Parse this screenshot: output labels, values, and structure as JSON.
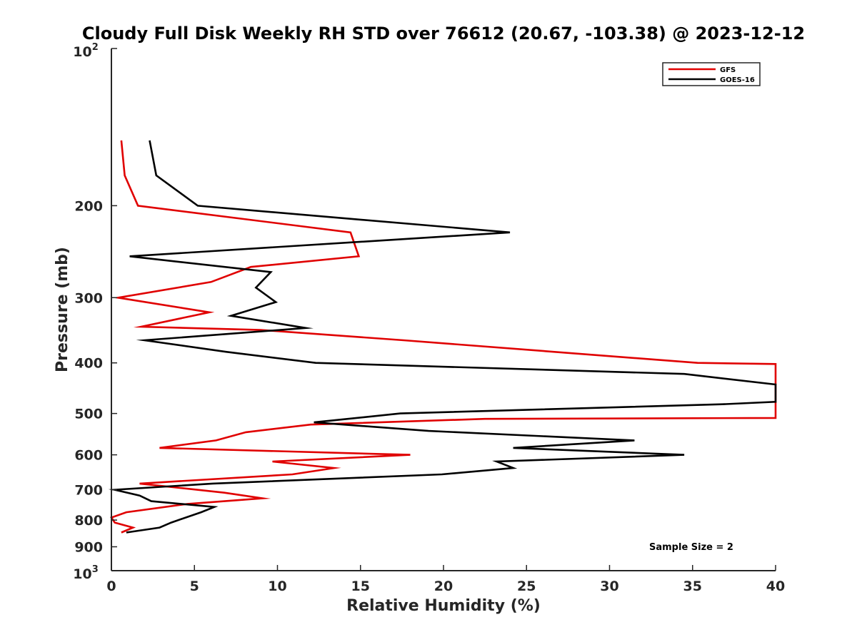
{
  "chart_data": {
    "type": "line",
    "title": "Cloudy Full Disk Weekly RH STD over 76612 (20.67, -103.38) @ 2023-12-12",
    "xlabel": "Relative Humidity (%)",
    "ylabel": "Pressure (mb)",
    "xlim": [
      0,
      40
    ],
    "ylim": [
      100,
      1000
    ],
    "yscale": "log",
    "y_reversed": true,
    "grid": false,
    "legend_position": "top-right",
    "x_ticks": [
      0,
      5,
      10,
      15,
      20,
      25,
      30,
      35,
      40
    ],
    "x_tick_labels": [
      "0",
      "5",
      "10",
      "15",
      "20",
      "25",
      "30",
      "35",
      "40"
    ],
    "y_ticks": [
      {
        "value": 100,
        "base": "10",
        "exp": "2"
      },
      {
        "value": 200,
        "label": "200"
      },
      {
        "value": 300,
        "label": "300"
      },
      {
        "value": 400,
        "label": "400"
      },
      {
        "value": 500,
        "label": "500"
      },
      {
        "value": 600,
        "label": "600"
      },
      {
        "value": 700,
        "label": "700"
      },
      {
        "value": 800,
        "label": "800"
      },
      {
        "value": 900,
        "label": "900"
      },
      {
        "value": 1000,
        "base": "10",
        "exp": "3"
      }
    ],
    "annotation": "Sample Size = 2",
    "series": [
      {
        "name": "GFS",
        "color": "#e00000",
        "points": [
          {
            "x": 0.6,
            "y": 150
          },
          {
            "x": 0.8,
            "y": 175
          },
          {
            "x": 1.6,
            "y": 200
          },
          {
            "x": 14.4,
            "y": 225
          },
          {
            "x": 14.9,
            "y": 250
          },
          {
            "x": 8.4,
            "y": 262
          },
          {
            "x": 6.0,
            "y": 280
          },
          {
            "x": 0.4,
            "y": 300
          },
          {
            "x": 5.9,
            "y": 320
          },
          {
            "x": 1.8,
            "y": 341
          },
          {
            "x": 9.0,
            "y": 346
          },
          {
            "x": 17.6,
            "y": 362
          },
          {
            "x": 35.3,
            "y": 400
          },
          {
            "x": 40.0,
            "y": 402
          },
          {
            "x": 40.0,
            "y": 510
          },
          {
            "x": 22.5,
            "y": 512
          },
          {
            "x": 12.0,
            "y": 525
          },
          {
            "x": 8.1,
            "y": 543
          },
          {
            "x": 6.3,
            "y": 563
          },
          {
            "x": 2.9,
            "y": 582
          },
          {
            "x": 18.0,
            "y": 600
          },
          {
            "x": 9.7,
            "y": 618
          },
          {
            "x": 13.4,
            "y": 636
          },
          {
            "x": 10.9,
            "y": 654
          },
          {
            "x": 1.7,
            "y": 681
          },
          {
            "x": 6.8,
            "y": 709
          },
          {
            "x": 9.1,
            "y": 727
          },
          {
            "x": 4.6,
            "y": 745
          },
          {
            "x": 0.9,
            "y": 773
          },
          {
            "x": 0.0,
            "y": 791
          },
          {
            "x": 0.2,
            "y": 809
          },
          {
            "x": 1.3,
            "y": 827
          },
          {
            "x": 0.6,
            "y": 845
          }
        ]
      },
      {
        "name": "GOES-16",
        "color": "#000000",
        "points": [
          {
            "x": 2.3,
            "y": 150
          },
          {
            "x": 2.7,
            "y": 175
          },
          {
            "x": 5.2,
            "y": 200
          },
          {
            "x": 24.0,
            "y": 225
          },
          {
            "x": 1.1,
            "y": 250
          },
          {
            "x": 9.6,
            "y": 268
          },
          {
            "x": 8.7,
            "y": 287
          },
          {
            "x": 9.9,
            "y": 306
          },
          {
            "x": 7.2,
            "y": 325
          },
          {
            "x": 11.7,
            "y": 343
          },
          {
            "x": 2.0,
            "y": 362
          },
          {
            "x": 6.9,
            "y": 381
          },
          {
            "x": 12.3,
            "y": 400
          },
          {
            "x": 34.5,
            "y": 420
          },
          {
            "x": 40.0,
            "y": 440
          },
          {
            "x": 40.0,
            "y": 475
          },
          {
            "x": 36.8,
            "y": 480
          },
          {
            "x": 17.4,
            "y": 500
          },
          {
            "x": 12.2,
            "y": 520
          },
          {
            "x": 19.1,
            "y": 540
          },
          {
            "x": 31.5,
            "y": 563
          },
          {
            "x": 24.2,
            "y": 582
          },
          {
            "x": 34.5,
            "y": 600
          },
          {
            "x": 23.2,
            "y": 618
          },
          {
            "x": 24.2,
            "y": 636
          },
          {
            "x": 19.9,
            "y": 654
          },
          {
            "x": 6.1,
            "y": 681
          },
          {
            "x": 0.2,
            "y": 700
          },
          {
            "x": 1.7,
            "y": 718
          },
          {
            "x": 2.4,
            "y": 736
          },
          {
            "x": 6.2,
            "y": 755
          },
          {
            "x": 5.4,
            "y": 773
          },
          {
            "x": 3.6,
            "y": 809
          },
          {
            "x": 2.9,
            "y": 827
          },
          {
            "x": 0.9,
            "y": 845
          }
        ]
      }
    ]
  }
}
